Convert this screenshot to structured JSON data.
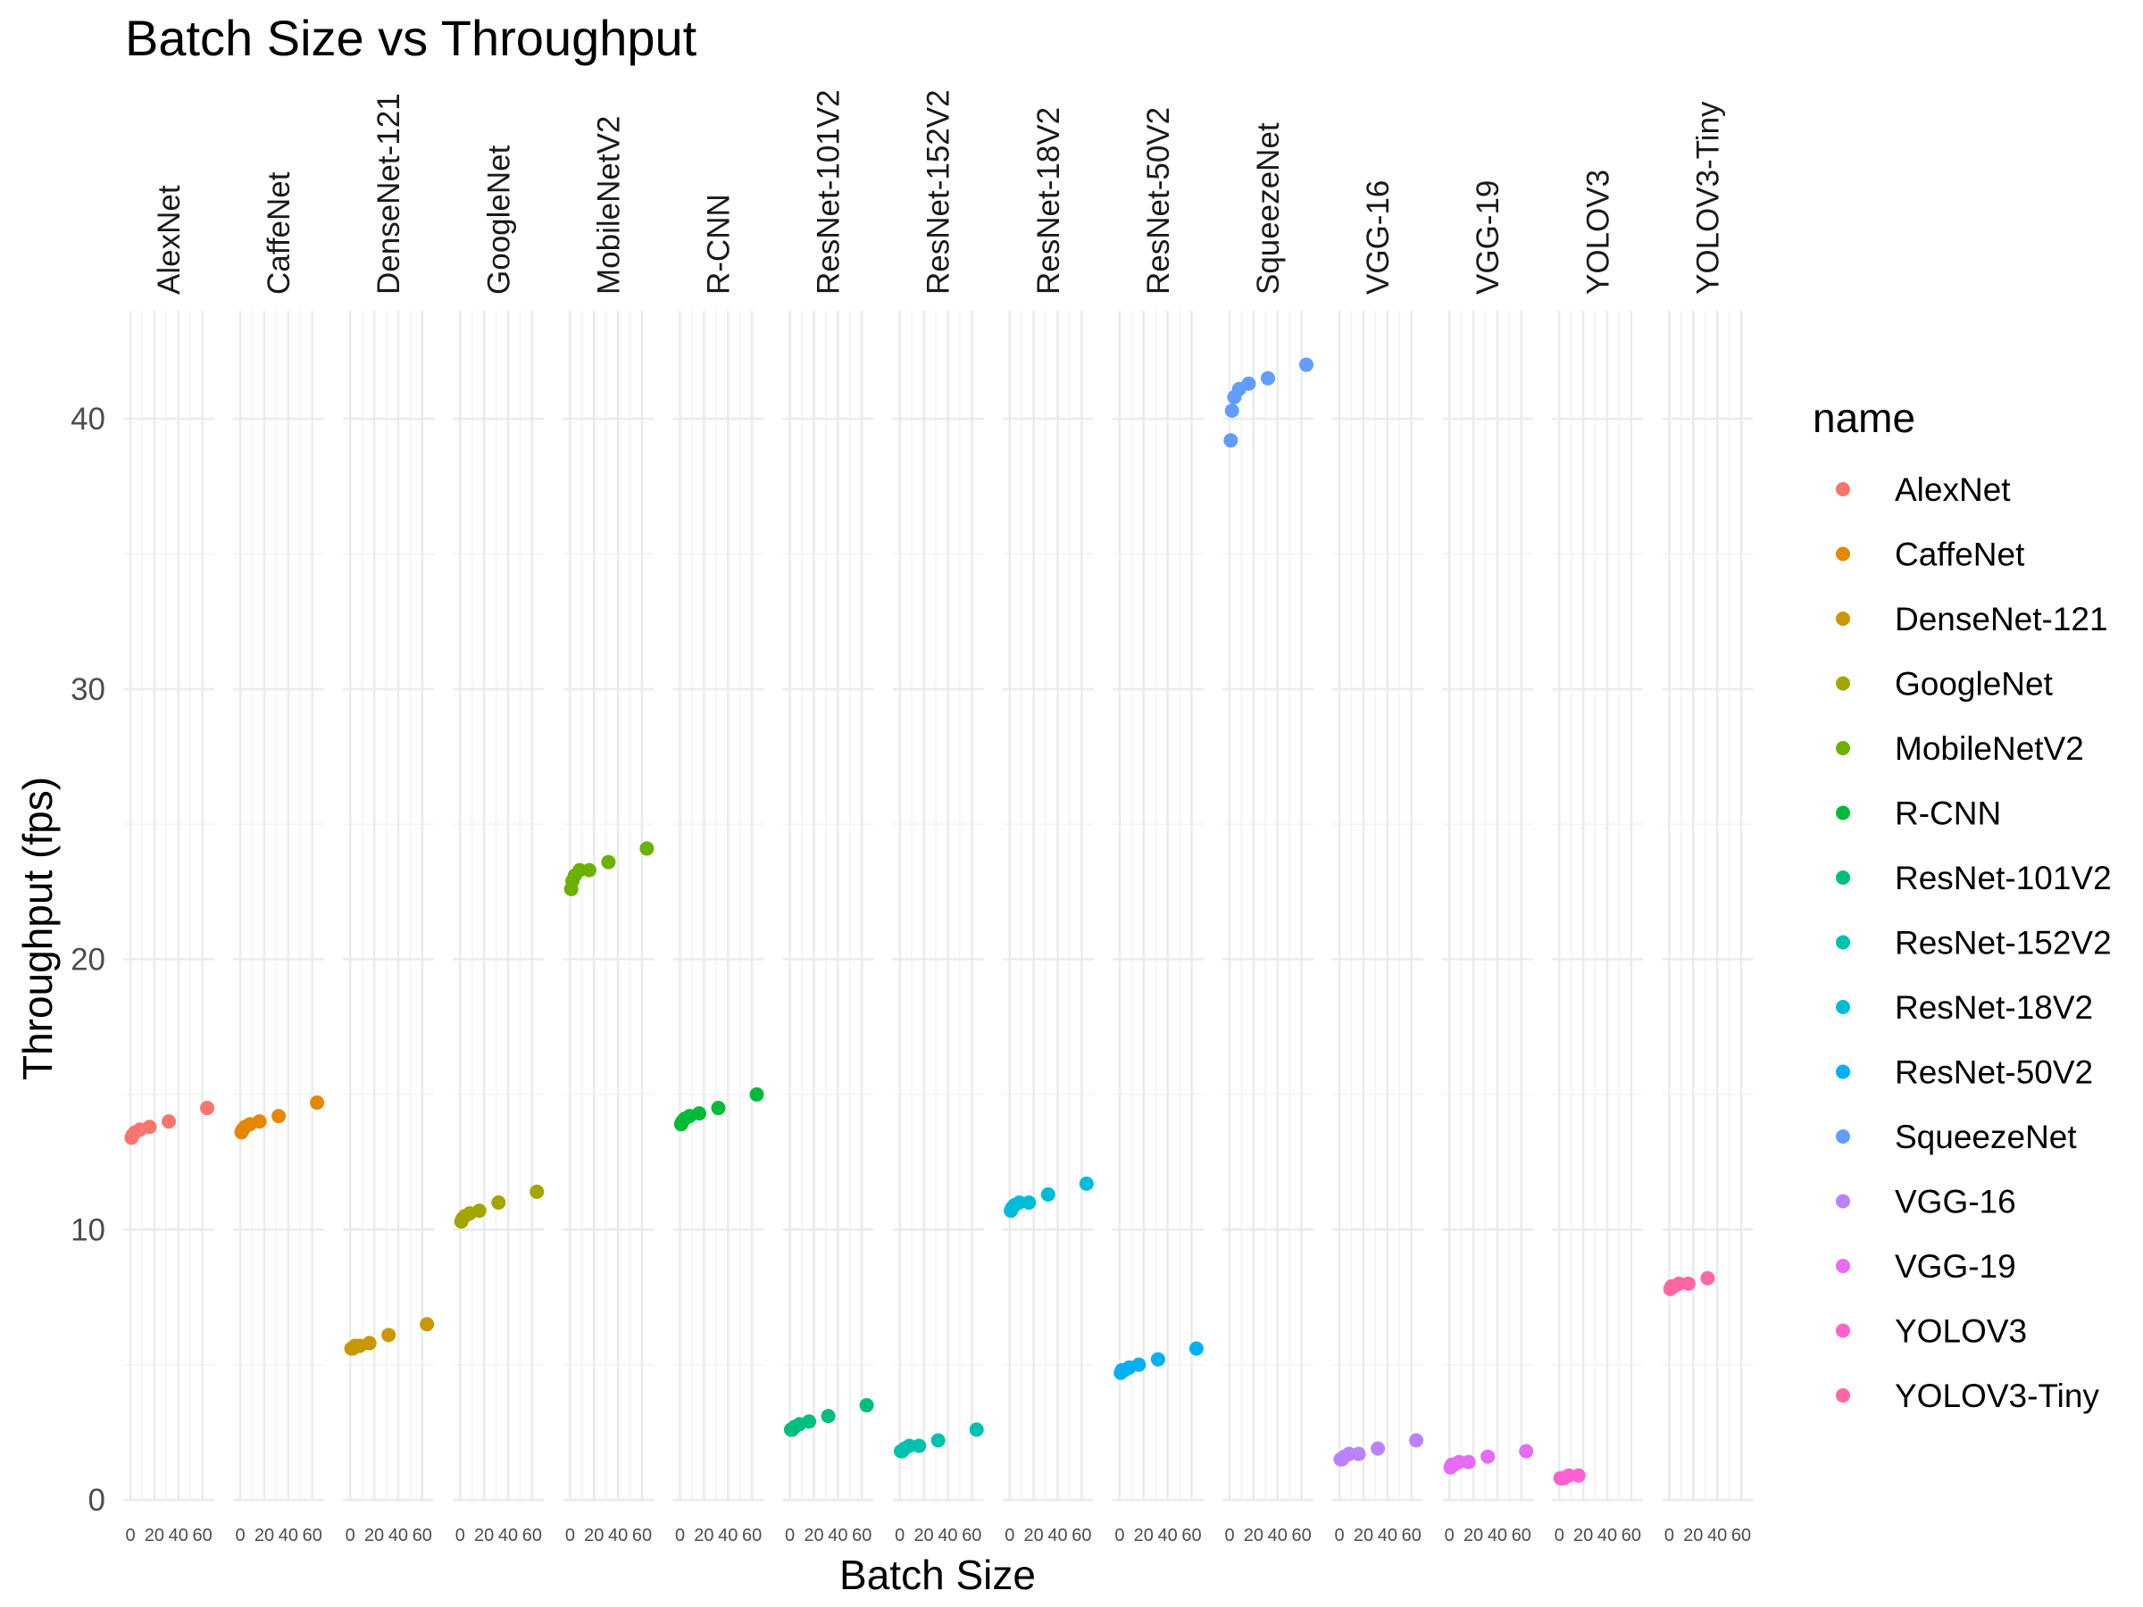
{
  "chart_data": {
    "type": "scatter",
    "title": "Batch Size vs Throughput",
    "xlabel": "Batch Size",
    "ylabel": "Throughput (fps)",
    "facet_by": "name",
    "xlim": [
      0,
      64
    ],
    "ylim": [
      0,
      44
    ],
    "x_ticks": [
      0,
      20,
      40,
      60
    ],
    "y_ticks": [
      0,
      10,
      20,
      30,
      40
    ],
    "grid": true,
    "legend": {
      "title": "name",
      "position": "right"
    },
    "series": [
      {
        "name": "AlexNet",
        "color": "#F8766D",
        "x": [
          1,
          2,
          4,
          8,
          16,
          32,
          64
        ],
        "y": [
          13.4,
          13.5,
          13.6,
          13.7,
          13.8,
          14.0,
          14.5
        ]
      },
      {
        "name": "CaffeNet",
        "color": "#E58700",
        "x": [
          1,
          2,
          4,
          8,
          16,
          32,
          64
        ],
        "y": [
          13.6,
          13.7,
          13.8,
          13.9,
          14.0,
          14.2,
          14.7
        ]
      },
      {
        "name": "DenseNet-121",
        "color": "#C99800",
        "x": [
          1,
          2,
          4,
          8,
          16,
          32,
          64
        ],
        "y": [
          5.6,
          5.6,
          5.7,
          5.7,
          5.8,
          6.1,
          6.5
        ]
      },
      {
        "name": "GoogleNet",
        "color": "#A3A500",
        "x": [
          1,
          2,
          4,
          8,
          16,
          32,
          64
        ],
        "y": [
          10.3,
          10.4,
          10.5,
          10.6,
          10.7,
          11.0,
          11.4
        ]
      },
      {
        "name": "MobileNetV2",
        "color": "#6BB100",
        "x": [
          1,
          2,
          4,
          8,
          16,
          32,
          64
        ],
        "y": [
          22.6,
          22.9,
          23.1,
          23.3,
          23.3,
          23.6,
          24.1
        ]
      },
      {
        "name": "R-CNN",
        "color": "#00BA38",
        "x": [
          1,
          2,
          4,
          8,
          16,
          32,
          64
        ],
        "y": [
          13.9,
          14.0,
          14.1,
          14.2,
          14.3,
          14.5,
          15.0
        ]
      },
      {
        "name": "ResNet-101V2",
        "color": "#00BF7D",
        "x": [
          1,
          2,
          4,
          8,
          16,
          32,
          64
        ],
        "y": [
          2.6,
          2.6,
          2.7,
          2.8,
          2.9,
          3.1,
          3.5
        ]
      },
      {
        "name": "ResNet-152V2",
        "color": "#00C0AF",
        "x": [
          1,
          2,
          4,
          8,
          16,
          32,
          64
        ],
        "y": [
          1.8,
          1.8,
          1.9,
          2.0,
          2.0,
          2.2,
          2.6
        ]
      },
      {
        "name": "ResNet-18V2",
        "color": "#00BCD8",
        "x": [
          1,
          2,
          4,
          8,
          16,
          32,
          64
        ],
        "y": [
          10.7,
          10.8,
          10.9,
          11.0,
          11.0,
          11.3,
          11.7
        ]
      },
      {
        "name": "ResNet-50V2",
        "color": "#00B0F6",
        "x": [
          1,
          2,
          4,
          8,
          16,
          32,
          64
        ],
        "y": [
          4.7,
          4.8,
          4.8,
          4.9,
          5.0,
          5.2,
          5.6
        ]
      },
      {
        "name": "SqueezeNet",
        "color": "#619CFF",
        "x": [
          1,
          2,
          4,
          8,
          16,
          32,
          64
        ],
        "y": [
          39.2,
          40.3,
          40.8,
          41.1,
          41.3,
          41.5,
          42.0
        ]
      },
      {
        "name": "VGG-16",
        "color": "#B983FF",
        "x": [
          1,
          2,
          4,
          8,
          16,
          32,
          64
        ],
        "y": [
          1.5,
          1.5,
          1.6,
          1.7,
          1.7,
          1.9,
          2.2
        ]
      },
      {
        "name": "VGG-19",
        "color": "#E76BF3",
        "x": [
          1,
          2,
          4,
          8,
          16,
          32,
          64
        ],
        "y": [
          1.2,
          1.3,
          1.3,
          1.4,
          1.4,
          1.6,
          1.8
        ]
      },
      {
        "name": "YOLOV3",
        "color": "#FD61D1",
        "x": [
          1,
          2,
          4,
          8,
          16
        ],
        "y": [
          0.8,
          0.8,
          0.8,
          0.9,
          0.9
        ]
      },
      {
        "name": "YOLOV3-Tiny",
        "color": "#FF67A4",
        "x": [
          1,
          2,
          4,
          8,
          16,
          32
        ],
        "y": [
          7.8,
          7.9,
          7.9,
          8.0,
          8.0,
          8.2
        ]
      }
    ]
  }
}
